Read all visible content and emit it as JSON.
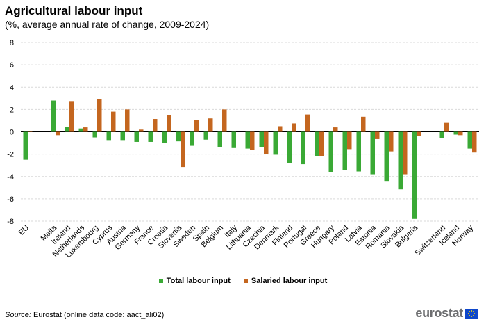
{
  "header": {
    "title": "Agricultural labour input",
    "subtitle": "(%, average annual rate of change, 2009-2024)"
  },
  "chart_data": {
    "type": "bar",
    "categories": [
      "EU",
      "Malta",
      "Ireland",
      "Netherlands",
      "Luxembourg",
      "Cyprus",
      "Austria",
      "Germany",
      "France",
      "Croatia",
      "Slovenia",
      "Sweden",
      "Spain",
      "Belgium",
      "Italy",
      "Lithuania",
      "Czechia",
      "Denmark",
      "Finland",
      "Portugal",
      "Greece",
      "Hungary",
      "Poland",
      "Latvia",
      "Estonia",
      "Romania",
      "Slovakia",
      "Bulgaria",
      "Switzerland",
      "Iceland",
      "Norway"
    ],
    "series": [
      {
        "name": "Total labour input",
        "color": "#3aa935",
        "values": [
          -2.5,
          2.8,
          0.45,
          0.3,
          -0.5,
          -0.8,
          -0.8,
          -0.9,
          -0.9,
          -1.0,
          -0.85,
          -1.25,
          -0.7,
          -1.35,
          -1.45,
          -1.5,
          -1.35,
          -2.05,
          -2.8,
          -2.9,
          -2.15,
          -3.6,
          -3.4,
          -3.55,
          -3.8,
          -4.4,
          -5.15,
          -7.8,
          -0.55,
          -0.25,
          -1.5
        ]
      },
      {
        "name": "Salaried labour input",
        "color": "#c4661f",
        "values": [
          0.05,
          -0.3,
          2.75,
          0.4,
          2.9,
          1.8,
          2.0,
          0.2,
          1.15,
          1.5,
          -3.15,
          1.05,
          1.2,
          2.0,
          0.0,
          -1.6,
          -2.0,
          0.5,
          0.75,
          1.55,
          -2.15,
          0.4,
          -1.55,
          1.35,
          -0.65,
          -1.75,
          -3.8,
          -0.35,
          0.8,
          -0.3,
          -1.85
        ]
      }
    ],
    "yticks": [
      8,
      6,
      4,
      2,
      0,
      -2,
      -4,
      -6,
      -8
    ],
    "ylim": [
      -8,
      8
    ],
    "grid": true,
    "legend_position": "bottom-center"
  },
  "legend": {
    "total_label": "Total labour input",
    "salaried_label": "Salaried labour input"
  },
  "footer": {
    "source_prefix": "Source:",
    "source_text": " Eurostat (online data code: aact_ali02)",
    "logo_text": "eurostat"
  }
}
